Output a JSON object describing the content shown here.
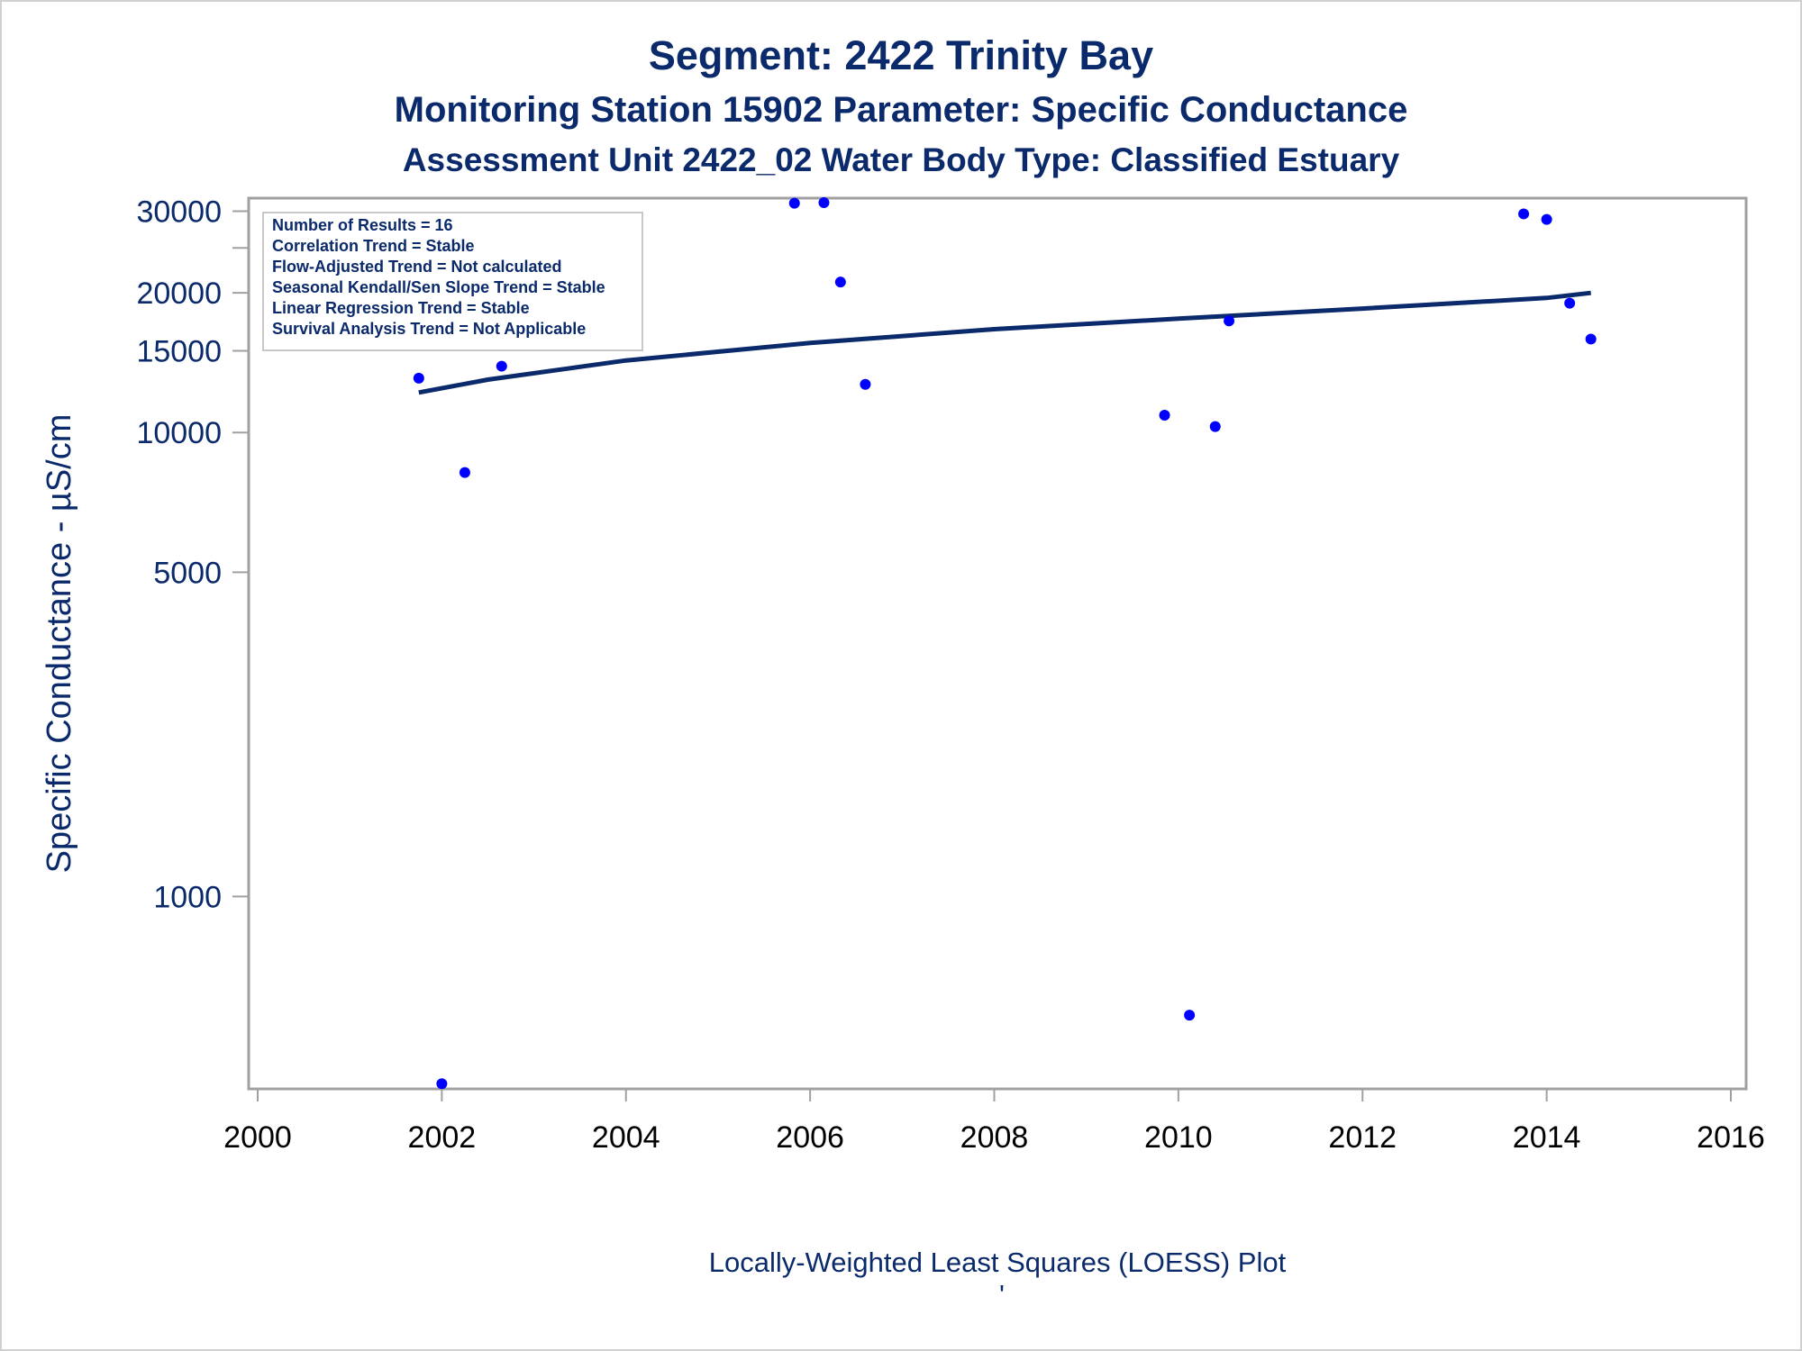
{
  "titles": {
    "line1": "Segment: 2422  Trinity Bay",
    "line2": "Monitoring Station 15902 Parameter: Specific Conductance",
    "line3": "Assessment Unit 2422_02   Water Body Type: Classified Estuary"
  },
  "footnote": "Locally-Weighted Least Squares (LOESS) Plot",
  "footnote_mark": "'",
  "stats_box": [
    "Number of Results = 16",
    "Correlation Trend = Stable",
    "Flow-Adjusted Trend = Not calculated",
    "Seasonal Kendall/Sen Slope Trend = Stable",
    "Linear Regression Trend = Stable",
    "Survival Analysis Trend = Not Applicable"
  ],
  "colors": {
    "points": "#0000ff",
    "loess_line": "#0b2a6b",
    "text": "#0b2a6b",
    "frame": "#a0a0a0"
  },
  "chart_data": {
    "type": "scatter",
    "xlabel": "",
    "ylabel": "Specific Conductance -  µS/cm",
    "xlim": [
      2000,
      2016
    ],
    "ylim": [
      385,
      32000
    ],
    "yscale": "log",
    "x_ticks": [
      2000,
      2002,
      2004,
      2006,
      2008,
      2010,
      2012,
      2014,
      2016
    ],
    "y_ticks": [
      1000,
      5000,
      10000,
      15000,
      20000,
      30000
    ],
    "y_minor_ticks": [
      25000
    ],
    "grid": false,
    "series": [
      {
        "points": [
          {
            "x": 2001.75,
            "y": 13100
          },
          {
            "x": 2002.0,
            "y": 395
          },
          {
            "x": 2002.25,
            "y": 8200
          },
          {
            "x": 2002.65,
            "y": 13900
          },
          {
            "x": 2005.83,
            "y": 31200
          },
          {
            "x": 2006.15,
            "y": 31300
          },
          {
            "x": 2006.33,
            "y": 21100
          },
          {
            "x": 2006.6,
            "y": 12700
          },
          {
            "x": 2009.85,
            "y": 10900
          },
          {
            "x": 2010.12,
            "y": 555
          },
          {
            "x": 2010.4,
            "y": 10300
          },
          {
            "x": 2010.55,
            "y": 17400
          },
          {
            "x": 2013.75,
            "y": 29600
          },
          {
            "x": 2014.0,
            "y": 28800
          },
          {
            "x": 2014.25,
            "y": 19000
          },
          {
            "x": 2014.48,
            "y": 15900
          }
        ]
      },
      {
        "type": "line",
        "points": [
          {
            "x": 2001.75,
            "y": 12200
          },
          {
            "x": 2002.5,
            "y": 13000
          },
          {
            "x": 2004.0,
            "y": 14300
          },
          {
            "x": 2006.0,
            "y": 15600
          },
          {
            "x": 2008.0,
            "y": 16700
          },
          {
            "x": 2010.0,
            "y": 17600
          },
          {
            "x": 2012.0,
            "y": 18500
          },
          {
            "x": 2014.0,
            "y": 19500
          },
          {
            "x": 2014.48,
            "y": 20000
          }
        ]
      }
    ]
  }
}
